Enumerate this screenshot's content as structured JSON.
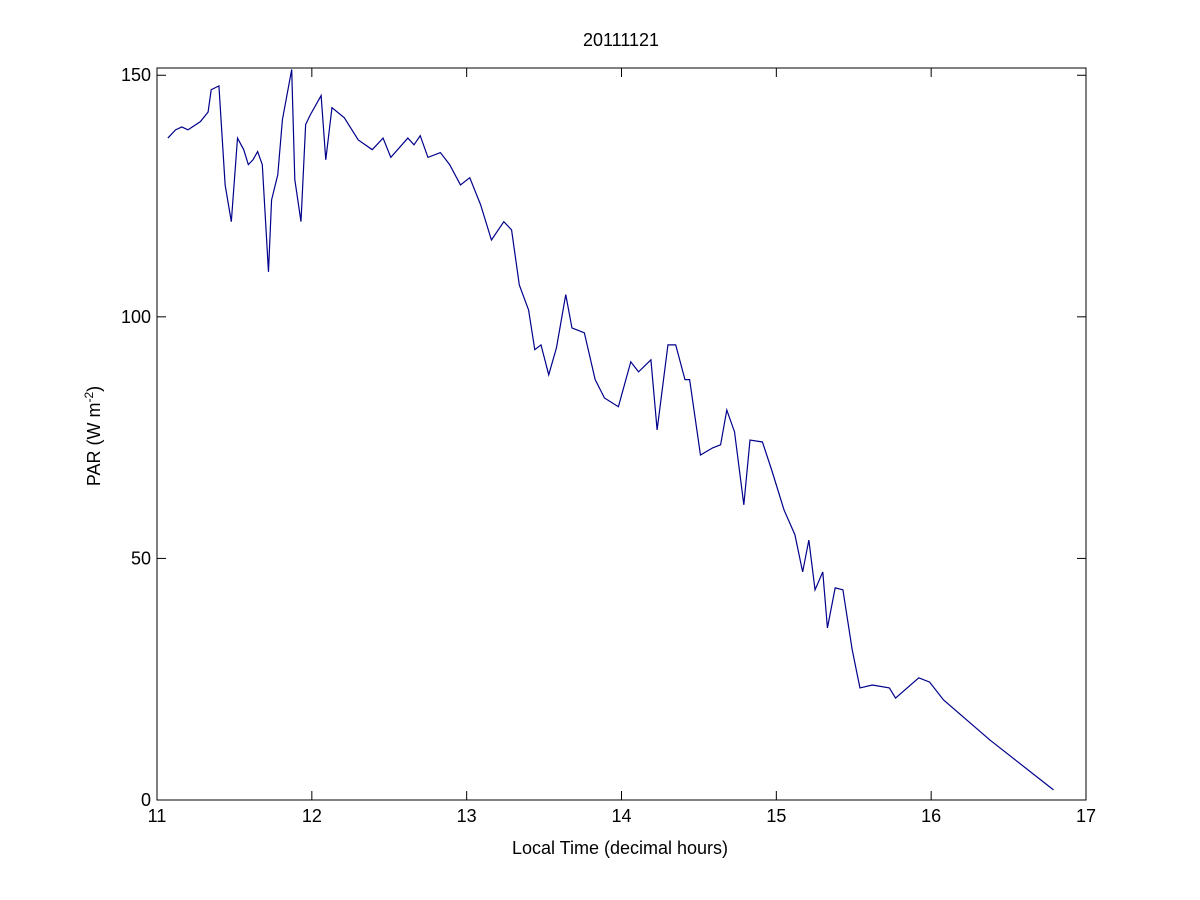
{
  "chart_data": {
    "type": "line",
    "title": "20111121",
    "xlabel": "Local Time (decimal hours)",
    "ylabel": {
      "text": "PAR (W m",
      "superscript": "-2",
      "suffix": ")"
    },
    "xlim": [
      11,
      17
    ],
    "xticks": [
      11,
      12,
      13,
      14,
      15,
      16,
      17
    ],
    "ylim": [
      0,
      151.5
    ],
    "yticks": [
      0,
      50,
      100,
      150
    ],
    "grid": false,
    "series": [
      {
        "color": "#00008b",
        "x": [
          11.07,
          11.12,
          11.16,
          11.2,
          11.28,
          11.33,
          11.35,
          11.4,
          11.44,
          11.48,
          11.52,
          11.56,
          11.59,
          11.62,
          11.65,
          11.68,
          11.72,
          11.74,
          11.78,
          11.81,
          11.87,
          11.89,
          11.93,
          11.96,
          11.99,
          12.06,
          12.09,
          12.13,
          12.21,
          12.3,
          12.39,
          12.46,
          12.51,
          12.62,
          12.66,
          12.7,
          12.75,
          12.83,
          12.89,
          12.96,
          13.02,
          13.09,
          13.16,
          13.24,
          13.29,
          13.34,
          13.4,
          13.44,
          13.48,
          13.53,
          13.58,
          13.64,
          13.68,
          13.76,
          13.83,
          13.89,
          13.98,
          14.06,
          14.11,
          14.19,
          14.23,
          14.3,
          14.35,
          14.41,
          14.44,
          14.51,
          14.59,
          14.64,
          14.68,
          14.73,
          14.79,
          14.83,
          14.91,
          14.97,
          15.05,
          15.12,
          15.17,
          15.21,
          15.25,
          15.3,
          15.33,
          15.38,
          15.43,
          15.49,
          15.54,
          15.62,
          15.73,
          15.77,
          15.92,
          15.99,
          16.08,
          16.38,
          16.79
        ],
        "values": [
          137,
          138.7,
          139.3,
          138.7,
          140.4,
          142.4,
          147,
          147.8,
          127.3,
          119.7,
          137,
          134.6,
          131.5,
          132.5,
          134.2,
          131.5,
          109.3,
          124.2,
          129.4,
          140.8,
          151.2,
          128.4,
          119.7,
          139.8,
          141.8,
          145.8,
          132.5,
          143.3,
          141.2,
          136.6,
          134.6,
          137,
          133,
          137,
          135.6,
          137.5,
          133,
          134,
          131.5,
          127.3,
          128.8,
          123.2,
          115.9,
          119.7,
          118,
          106.6,
          101.4,
          93.2,
          94.2,
          88,
          93.6,
          104.6,
          97.7,
          96.7,
          87,
          83.2,
          81.4,
          90.7,
          88.6,
          91.1,
          76.6,
          94.2,
          94.2,
          87,
          87,
          71.4,
          72.9,
          73.5,
          80.7,
          76.2,
          61.1,
          74.5,
          74.1,
          68.3,
          60,
          54.9,
          47.2,
          53.8,
          43.5,
          47.2,
          35.6,
          43.9,
          43.5,
          31.1,
          23.2,
          23.8,
          23.2,
          21.1,
          25.3,
          24.4,
          20.7,
          12.4,
          2.1
        ]
      }
    ]
  }
}
